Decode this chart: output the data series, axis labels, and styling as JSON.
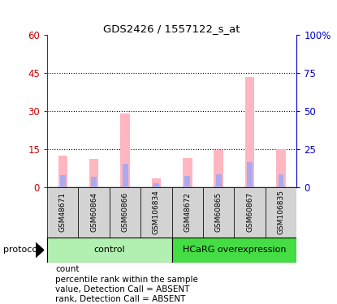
{
  "title": "GDS2426 / 1557122_s_at",
  "samples": [
    "GSM48671",
    "GSM60864",
    "GSM60866",
    "GSM106834",
    "GSM48672",
    "GSM60865",
    "GSM60867",
    "GSM106835"
  ],
  "pink_bars": [
    12.5,
    11.0,
    29.0,
    3.5,
    11.5,
    14.5,
    43.5,
    15.0
  ],
  "blue_bars": [
    8.0,
    7.0,
    15.5,
    2.5,
    7.5,
    8.5,
    16.5,
    8.5
  ],
  "ylim_left": [
    0,
    60
  ],
  "ylim_right": [
    0,
    100
  ],
  "yticks_left": [
    0,
    15,
    30,
    45,
    60
  ],
  "ytick_labels_left": [
    "0",
    "15",
    "30",
    "45",
    "60"
  ],
  "yticks_right": [
    0,
    25,
    50,
    75,
    100
  ],
  "ytick_labels_right": [
    "0",
    "25",
    "50",
    "75",
    "100%"
  ],
  "bar_bg_color": "#d3d3d3",
  "pink_color": "#ffb6c1",
  "blue_color": "#aaaaee",
  "red_color": "#cc0000",
  "blue_dot_color": "#0000cc",
  "left_axis_color": "#cc0000",
  "right_axis_color": "#0000cc",
  "ctrl_color": "#b2f0b2",
  "hcarg_color": "#44dd44",
  "legend_items": [
    {
      "label": "count",
      "color": "#cc0000"
    },
    {
      "label": "percentile rank within the sample",
      "color": "#0000cc"
    },
    {
      "label": "value, Detection Call = ABSENT",
      "color": "#ffb6c1"
    },
    {
      "label": "rank, Detection Call = ABSENT",
      "color": "#aaaaee"
    }
  ]
}
